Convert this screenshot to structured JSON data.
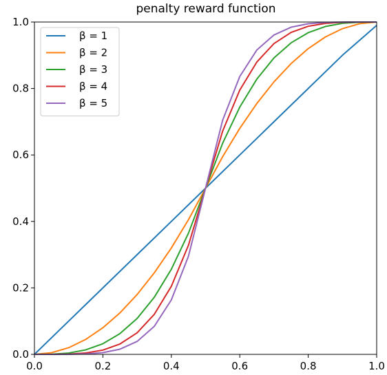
{
  "chart_data": {
    "type": "line",
    "title": "penalty reward function",
    "xlabel": "",
    "ylabel": "",
    "xlim": [
      0.0,
      1.0
    ],
    "ylim": [
      0.0,
      1.0
    ],
    "xticks": [
      "0.0",
      "0.2",
      "0.4",
      "0.6",
      "0.8",
      "1.0"
    ],
    "yticks": [
      "0.0",
      "0.2",
      "0.4",
      "0.6",
      "0.8",
      "1.0"
    ],
    "grid": false,
    "legend_position": "upper-left",
    "series": [
      {
        "name": "β = 1",
        "color": "#1f77b4",
        "x": [
          0.0,
          0.1,
          0.2,
          0.3,
          0.4,
          0.5,
          0.6,
          0.7,
          0.8,
          0.9,
          1.0
        ],
        "y": [
          0.0,
          0.1,
          0.2,
          0.3,
          0.4,
          0.5,
          0.6,
          0.7,
          0.8,
          0.9,
          0.99
        ]
      },
      {
        "name": "β = 2",
        "color": "#ff7f0e",
        "x": [
          0.0,
          0.05,
          0.1,
          0.15,
          0.2,
          0.25,
          0.3,
          0.35,
          0.4,
          0.45,
          0.5,
          0.55,
          0.6,
          0.65,
          0.7,
          0.75,
          0.8,
          0.85,
          0.9,
          0.95,
          1.0
        ],
        "y": [
          0.0,
          0.005,
          0.02,
          0.045,
          0.08,
          0.125,
          0.18,
          0.245,
          0.32,
          0.405,
          0.5,
          0.595,
          0.68,
          0.755,
          0.82,
          0.875,
          0.92,
          0.955,
          0.98,
          0.995,
          1.0
        ]
      },
      {
        "name": "β = 3",
        "color": "#2ca02c",
        "x": [
          0.0,
          0.05,
          0.1,
          0.15,
          0.2,
          0.25,
          0.3,
          0.35,
          0.4,
          0.45,
          0.5,
          0.55,
          0.6,
          0.65,
          0.7,
          0.75,
          0.8,
          0.85,
          0.9,
          0.95,
          1.0
        ],
        "y": [
          0.0,
          0.0005,
          0.004,
          0.0135,
          0.032,
          0.0625,
          0.108,
          0.1715,
          0.256,
          0.3645,
          0.5,
          0.6355,
          0.744,
          0.8285,
          0.892,
          0.9375,
          0.968,
          0.9865,
          0.996,
          0.9995,
          1.0
        ]
      },
      {
        "name": "β = 4",
        "color": "#d62728",
        "x": [
          0.0,
          0.05,
          0.1,
          0.15,
          0.2,
          0.25,
          0.3,
          0.35,
          0.4,
          0.45,
          0.5,
          0.55,
          0.6,
          0.65,
          0.7,
          0.75,
          0.8,
          0.85,
          0.9,
          0.95,
          1.0
        ],
        "y": [
          0.0,
          0.0,
          0.0008,
          0.0041,
          0.0128,
          0.0313,
          0.0648,
          0.1201,
          0.2048,
          0.3281,
          0.5,
          0.6719,
          0.7952,
          0.8799,
          0.9352,
          0.9688,
          0.9872,
          0.9959,
          0.9992,
          1.0,
          1.0
        ]
      },
      {
        "name": "β = 5",
        "color": "#9467bd",
        "x": [
          0.0,
          0.05,
          0.1,
          0.15,
          0.2,
          0.25,
          0.3,
          0.35,
          0.4,
          0.45,
          0.5,
          0.55,
          0.6,
          0.65,
          0.7,
          0.75,
          0.8,
          0.85,
          0.9,
          0.95,
          1.0
        ],
        "y": [
          0.0,
          0.0,
          0.0002,
          0.0012,
          0.0051,
          0.0156,
          0.0389,
          0.084,
          0.1638,
          0.2952,
          0.5,
          0.7048,
          0.8362,
          0.916,
          0.9611,
          0.9844,
          0.9949,
          0.9988,
          0.9998,
          1.0,
          1.0
        ]
      }
    ]
  }
}
